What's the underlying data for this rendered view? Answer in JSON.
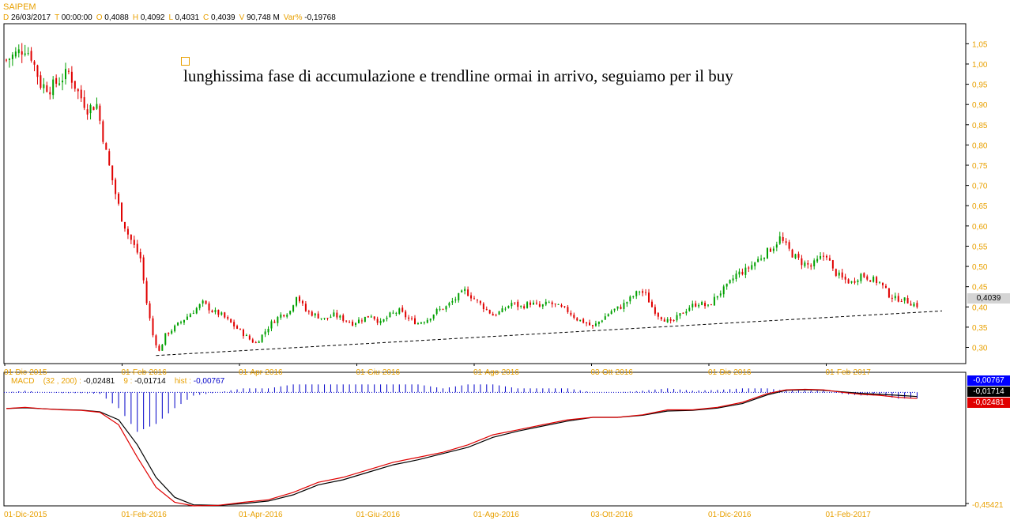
{
  "header": {
    "symbol": "SAIPEM",
    "ohlc": [
      {
        "k": "D",
        "v": "26/03/2017"
      },
      {
        "k": "T",
        "v": "00:00:00"
      },
      {
        "k": "O",
        "v": "0,4088"
      },
      {
        "k": "H",
        "v": "0,4092"
      },
      {
        "k": "L",
        "v": "0,4031"
      },
      {
        "k": "C",
        "v": "0,4039"
      },
      {
        "k": "V",
        "v": "90,748 M"
      },
      {
        "k": "Var%",
        "v": "-0,19768"
      }
    ]
  },
  "annotation": "lunghissima fase di accumulazione e trendline ormai in arrivo, seguiamo per il buy",
  "price_label": "0,4039",
  "macd_header": {
    "name": "MACD",
    "params": "(32 , 200) :",
    "macd_value": "-0,02481",
    "signal_label": "9 :",
    "signal_value": "-0,01714",
    "hist_label": "hist :",
    "hist_value": "-0,00767"
  },
  "macd_tags": {
    "hist": "-0,00767",
    "signal": "-0,01714",
    "macd": "-0,02481"
  },
  "macd_min_label": "-0,45421",
  "colors": {
    "up": "#00a000",
    "down": "#e00000",
    "accent": "#e8a000",
    "hist": "#0000c8"
  },
  "chart_data": [
    {
      "type": "candlestick",
      "title": "SAIPEM",
      "ylim": [
        0.26,
        1.08
      ],
      "yticks": [
        "1,05",
        "1,00",
        "0,95",
        "0,90",
        "0,85",
        "0,80",
        "0,75",
        "0,70",
        "0,65",
        "0,60",
        "0,55",
        "0,50",
        "0,45",
        "0,40",
        "0,35",
        "0,30"
      ],
      "x_tick_labels": [
        "01-Dic-2015",
        "01-Feb-2016",
        "01-Apr-2016",
        "01-Giu-2016",
        "01-Ago-2016",
        "03-Ott-2016",
        "01-Dic-2016",
        "01-Feb-2017"
      ],
      "close_path": [
        [
          0,
          1.01
        ],
        [
          4,
          1.03
        ],
        [
          6,
          1.04
        ],
        [
          8,
          1.02
        ],
        [
          11,
          0.95
        ],
        [
          14,
          0.94
        ],
        [
          17,
          0.96
        ],
        [
          20,
          0.98
        ],
        [
          23,
          0.93
        ],
        [
          26,
          0.89
        ],
        [
          29,
          0.9
        ],
        [
          32,
          0.78
        ],
        [
          35,
          0.68
        ],
        [
          37,
          0.62
        ],
        [
          39,
          0.58
        ],
        [
          41,
          0.55
        ],
        [
          43,
          0.52
        ],
        [
          45,
          0.41
        ],
        [
          47,
          0.33
        ],
        [
          49,
          0.29
        ],
        [
          51,
          0.33
        ],
        [
          54,
          0.35
        ],
        [
          57,
          0.37
        ],
        [
          60,
          0.39
        ],
        [
          63,
          0.41
        ],
        [
          66,
          0.39
        ],
        [
          69,
          0.38
        ],
        [
          72,
          0.36
        ],
        [
          75,
          0.34
        ],
        [
          78,
          0.32
        ],
        [
          80,
          0.31
        ],
        [
          82,
          0.33
        ],
        [
          85,
          0.36
        ],
        [
          88,
          0.38
        ],
        [
          91,
          0.39
        ],
        [
          93,
          0.43
        ],
        [
          96,
          0.39
        ],
        [
          99,
          0.38
        ],
        [
          102,
          0.37
        ],
        [
          105,
          0.38
        ],
        [
          108,
          0.37
        ],
        [
          111,
          0.36
        ],
        [
          114,
          0.37
        ],
        [
          117,
          0.38
        ],
        [
          120,
          0.36
        ],
        [
          123,
          0.38
        ],
        [
          126,
          0.39
        ],
        [
          129,
          0.37
        ],
        [
          132,
          0.36
        ],
        [
          135,
          0.37
        ],
        [
          138,
          0.39
        ],
        [
          141,
          0.4
        ],
        [
          144,
          0.42
        ],
        [
          147,
          0.44
        ],
        [
          150,
          0.42
        ],
        [
          153,
          0.4
        ],
        [
          156,
          0.38
        ],
        [
          159,
          0.39
        ],
        [
          162,
          0.41
        ],
        [
          165,
          0.4
        ],
        [
          168,
          0.41
        ],
        [
          171,
          0.4
        ],
        [
          174,
          0.41
        ],
        [
          177,
          0.4
        ],
        [
          180,
          0.39
        ],
        [
          183,
          0.37
        ],
        [
          186,
          0.36
        ],
        [
          188,
          0.35
        ],
        [
          191,
          0.37
        ],
        [
          194,
          0.39
        ],
        [
          197,
          0.4
        ],
        [
          200,
          0.42
        ],
        [
          203,
          0.44
        ],
        [
          205,
          0.43
        ],
        [
          207,
          0.4
        ],
        [
          209,
          0.38
        ],
        [
          211,
          0.37
        ],
        [
          213,
          0.36
        ],
        [
          216,
          0.38
        ],
        [
          219,
          0.4
        ],
        [
          222,
          0.41
        ],
        [
          225,
          0.4
        ],
        [
          228,
          0.43
        ],
        [
          231,
          0.45
        ],
        [
          234,
          0.48
        ],
        [
          237,
          0.49
        ],
        [
          240,
          0.51
        ],
        [
          243,
          0.53
        ],
        [
          246,
          0.55
        ],
        [
          248,
          0.57
        ],
        [
          250,
          0.55
        ],
        [
          252,
          0.53
        ],
        [
          255,
          0.51
        ],
        [
          258,
          0.5
        ],
        [
          261,
          0.52
        ],
        [
          263,
          0.53
        ],
        [
          265,
          0.49
        ],
        [
          268,
          0.47
        ],
        [
          271,
          0.46
        ],
        [
          274,
          0.48
        ],
        [
          277,
          0.47
        ],
        [
          280,
          0.46
        ],
        [
          283,
          0.43
        ],
        [
          285,
          0.42
        ],
        [
          287,
          0.42
        ],
        [
          290,
          0.41
        ],
        [
          292,
          0.4039
        ]
      ],
      "trendline": [
        [
          48,
          0.28
        ],
        [
          300,
          0.39
        ]
      ]
    },
    {
      "type": "line",
      "title": "MACD",
      "params": "(32 , 200)",
      "series": [
        {
          "name": "MACD",
          "color": "#e00000"
        },
        {
          "name": "9",
          "color": "#000000"
        },
        {
          "name": "hist",
          "color": "#0000c8"
        }
      ],
      "ylim": [
        -0.45421,
        0.02
      ],
      "macd_path": [
        [
          0,
          -0.065
        ],
        [
          6,
          -0.06
        ],
        [
          12,
          -0.066
        ],
        [
          18,
          -0.07
        ],
        [
          24,
          -0.072
        ],
        [
          30,
          -0.08
        ],
        [
          36,
          -0.13
        ],
        [
          42,
          -0.26
        ],
        [
          48,
          -0.38
        ],
        [
          54,
          -0.44
        ],
        [
          60,
          -0.4542
        ],
        [
          68,
          -0.452
        ],
        [
          76,
          -0.44
        ],
        [
          84,
          -0.43
        ],
        [
          92,
          -0.4
        ],
        [
          100,
          -0.36
        ],
        [
          108,
          -0.34
        ],
        [
          116,
          -0.31
        ],
        [
          124,
          -0.28
        ],
        [
          132,
          -0.26
        ],
        [
          140,
          -0.24
        ],
        [
          148,
          -0.21
        ],
        [
          156,
          -0.17
        ],
        [
          164,
          -0.15
        ],
        [
          172,
          -0.13
        ],
        [
          180,
          -0.11
        ],
        [
          188,
          -0.1
        ],
        [
          196,
          -0.1
        ],
        [
          204,
          -0.09
        ],
        [
          212,
          -0.07
        ],
        [
          220,
          -0.07
        ],
        [
          228,
          -0.06
        ],
        [
          236,
          -0.04
        ],
        [
          244,
          -0.005
        ],
        [
          250,
          0.01
        ],
        [
          256,
          0.012
        ],
        [
          262,
          0.01
        ],
        [
          268,
          0.0
        ],
        [
          274,
          -0.008
        ],
        [
          280,
          -0.012
        ],
        [
          286,
          -0.02
        ],
        [
          292,
          -0.02481
        ]
      ],
      "signal_path": [
        [
          0,
          -0.065
        ],
        [
          6,
          -0.062
        ],
        [
          12,
          -0.066
        ],
        [
          18,
          -0.069
        ],
        [
          24,
          -0.071
        ],
        [
          30,
          -0.078
        ],
        [
          36,
          -0.11
        ],
        [
          42,
          -0.21
        ],
        [
          48,
          -0.34
        ],
        [
          54,
          -0.42
        ],
        [
          60,
          -0.45
        ],
        [
          68,
          -0.452
        ],
        [
          76,
          -0.445
        ],
        [
          84,
          -0.435
        ],
        [
          92,
          -0.41
        ],
        [
          100,
          -0.37
        ],
        [
          108,
          -0.35
        ],
        [
          116,
          -0.32
        ],
        [
          124,
          -0.29
        ],
        [
          132,
          -0.27
        ],
        [
          140,
          -0.245
        ],
        [
          148,
          -0.22
        ],
        [
          156,
          -0.18
        ],
        [
          164,
          -0.155
        ],
        [
          172,
          -0.135
        ],
        [
          180,
          -0.115
        ],
        [
          188,
          -0.1
        ],
        [
          196,
          -0.1
        ],
        [
          204,
          -0.092
        ],
        [
          212,
          -0.075
        ],
        [
          220,
          -0.072
        ],
        [
          228,
          -0.063
        ],
        [
          236,
          -0.045
        ],
        [
          244,
          -0.01
        ],
        [
          250,
          0.008
        ],
        [
          256,
          0.01
        ],
        [
          262,
          0.008
        ],
        [
          268,
          0.002
        ],
        [
          274,
          -0.004
        ],
        [
          280,
          -0.008
        ],
        [
          286,
          -0.012
        ],
        [
          292,
          -0.01714
        ]
      ]
    }
  ]
}
